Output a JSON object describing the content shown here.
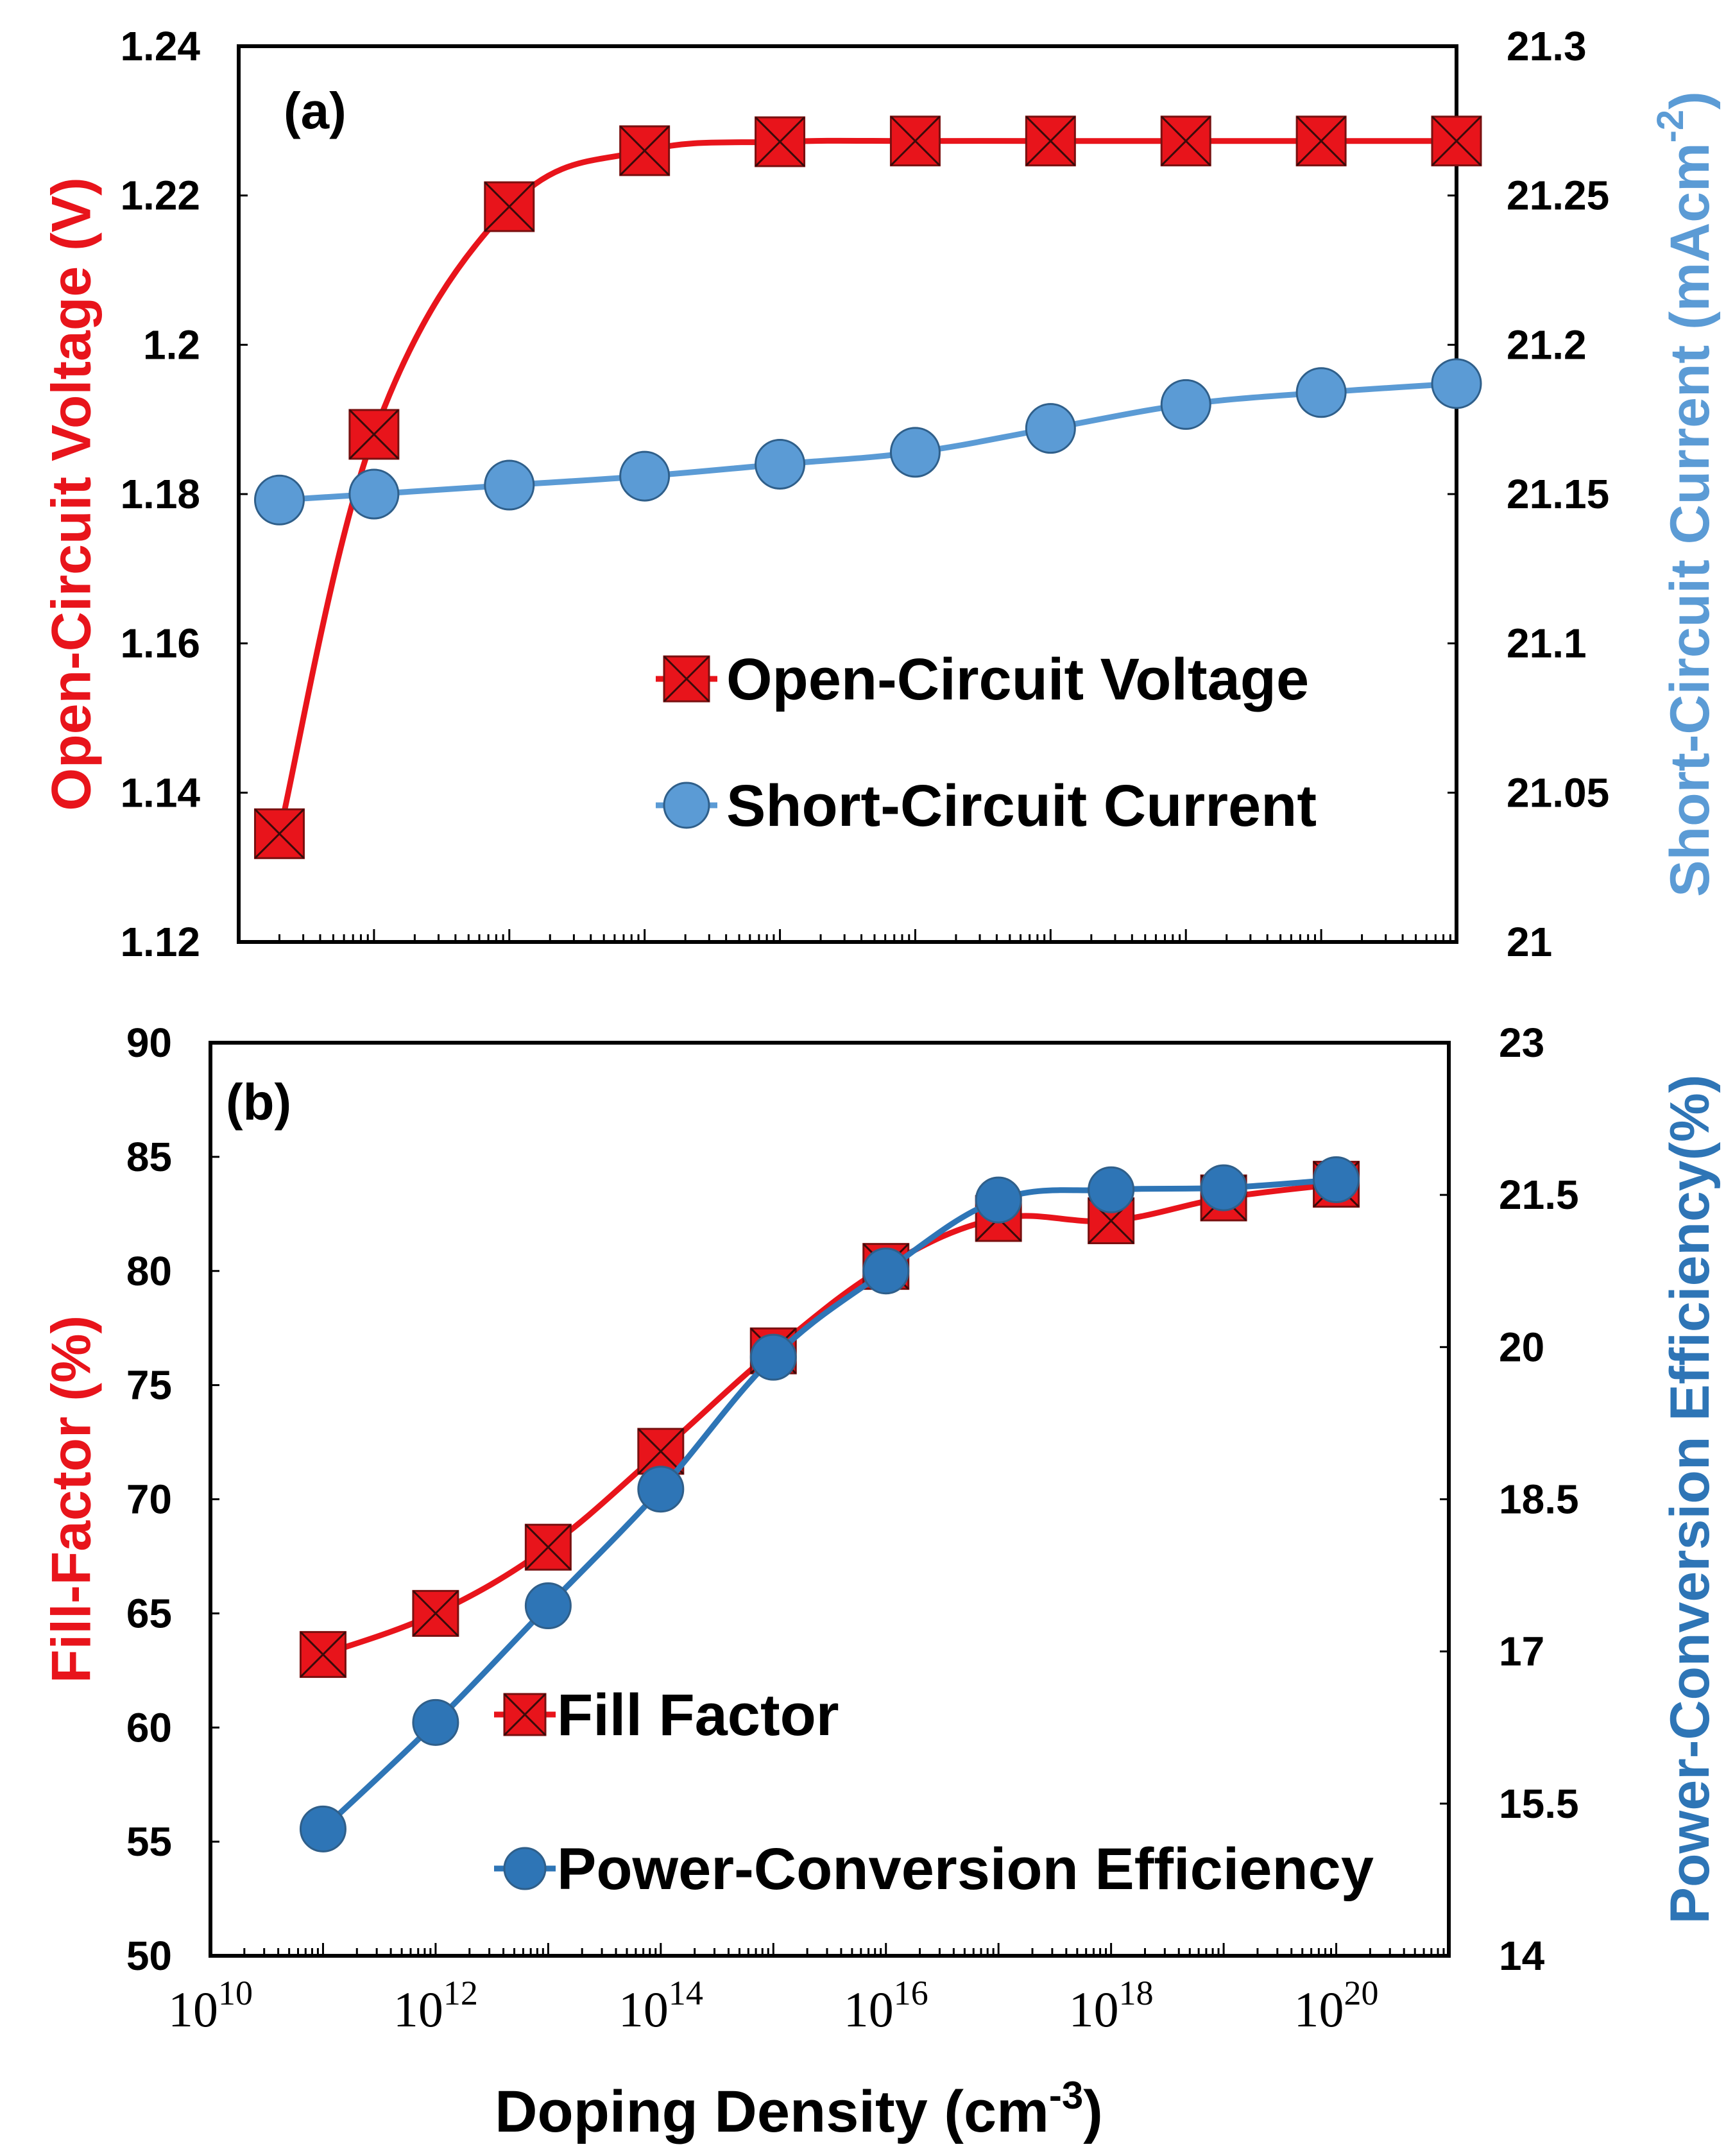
{
  "colors": {
    "red": "#e8141b",
    "blue": "#5b9bd5",
    "blue_dark": "#2e75b6",
    "axis": "#000000"
  },
  "x_axis": {
    "label_prefix": "Doping Density (cm",
    "label_exp": "-3",
    "label_suffix": ")",
    "tick_base": "10",
    "tick_exps": [
      "10",
      "12",
      "14",
      "16",
      "18",
      "20"
    ]
  },
  "chart_data": [
    {
      "id": "a",
      "type": "line",
      "panel_label": "(a)",
      "x_scale": "log",
      "xlim": [
        100000000000.0,
        1e+20
      ],
      "x": [
        200000000000.0,
        1000000000000.0,
        10000000000000.0,
        100000000000000.0,
        1000000000000000.0,
        1e+16,
        1e+17,
        1e+18,
        1e+19,
        1e+20
      ],
      "y_left": {
        "title": "Open-Circuit Voltage (V)",
        "lim": [
          1.12,
          1.24
        ],
        "ticks": [
          "1.12",
          "1.14",
          "1.16",
          "1.18",
          "1.2",
          "1.22",
          "1.24"
        ]
      },
      "y_right": {
        "title_prefix": "Short-Circuit Current (mAcm",
        "title_exp": "-2",
        "title_suffix": ")",
        "lim": [
          21.0,
          21.3
        ],
        "ticks": [
          "21",
          "21.05",
          "21.1",
          "21.15",
          "21.2",
          "21.25",
          "21.3"
        ]
      },
      "series": [
        {
          "name": "Open-Circuit Voltage",
          "axis": "left",
          "marker": "square-x",
          "values": [
            1.1345,
            1.188,
            1.2185,
            1.226,
            1.2272,
            1.2273,
            1.2273,
            1.2273,
            1.2273,
            1.2273
          ]
        },
        {
          "name": "Short-Circuit Current",
          "axis": "right",
          "marker": "circle",
          "values": [
            21.148,
            21.15,
            21.153,
            21.156,
            21.16,
            21.164,
            21.172,
            21.18,
            21.184,
            21.187
          ]
        }
      ]
    },
    {
      "id": "b",
      "type": "line",
      "panel_label": "(b)",
      "x_scale": "log",
      "xlim": [
        10000000000.0,
        1e+21
      ],
      "x": [
        100000000000.0,
        1000000000000.0,
        10000000000000.0,
        100000000000000.0,
        1000000000000000.0,
        1e+16,
        1e+17,
        1e+18,
        1e+19,
        1e+20
      ],
      "y_left": {
        "title": "Fill-Factor (%)",
        "lim": [
          50,
          90
        ],
        "ticks": [
          "50",
          "55",
          "60",
          "65",
          "70",
          "75",
          "80",
          "85",
          "90"
        ]
      },
      "y_right": {
        "title_prefix": "Power-Conversion Efficiency(%)",
        "title_exp": "",
        "title_suffix": "",
        "lim": [
          14,
          23
        ],
        "ticks": [
          "14",
          "15.5",
          "17",
          "18.5",
          "20",
          "21.5",
          "23"
        ]
      },
      "series": [
        {
          "name": "Fill Factor",
          "axis": "left",
          "marker": "square-x",
          "values": [
            63.2,
            65.0,
            67.9,
            72.1,
            76.5,
            80.2,
            82.3,
            82.2,
            83.2,
            83.8
          ]
        },
        {
          "name": "Power-Conversion Efficiency",
          "axis": "right",
          "marker": "circle",
          "values": [
            15.25,
            16.3,
            17.45,
            18.6,
            19.9,
            20.75,
            21.45,
            21.55,
            21.57,
            21.65
          ]
        }
      ]
    }
  ]
}
